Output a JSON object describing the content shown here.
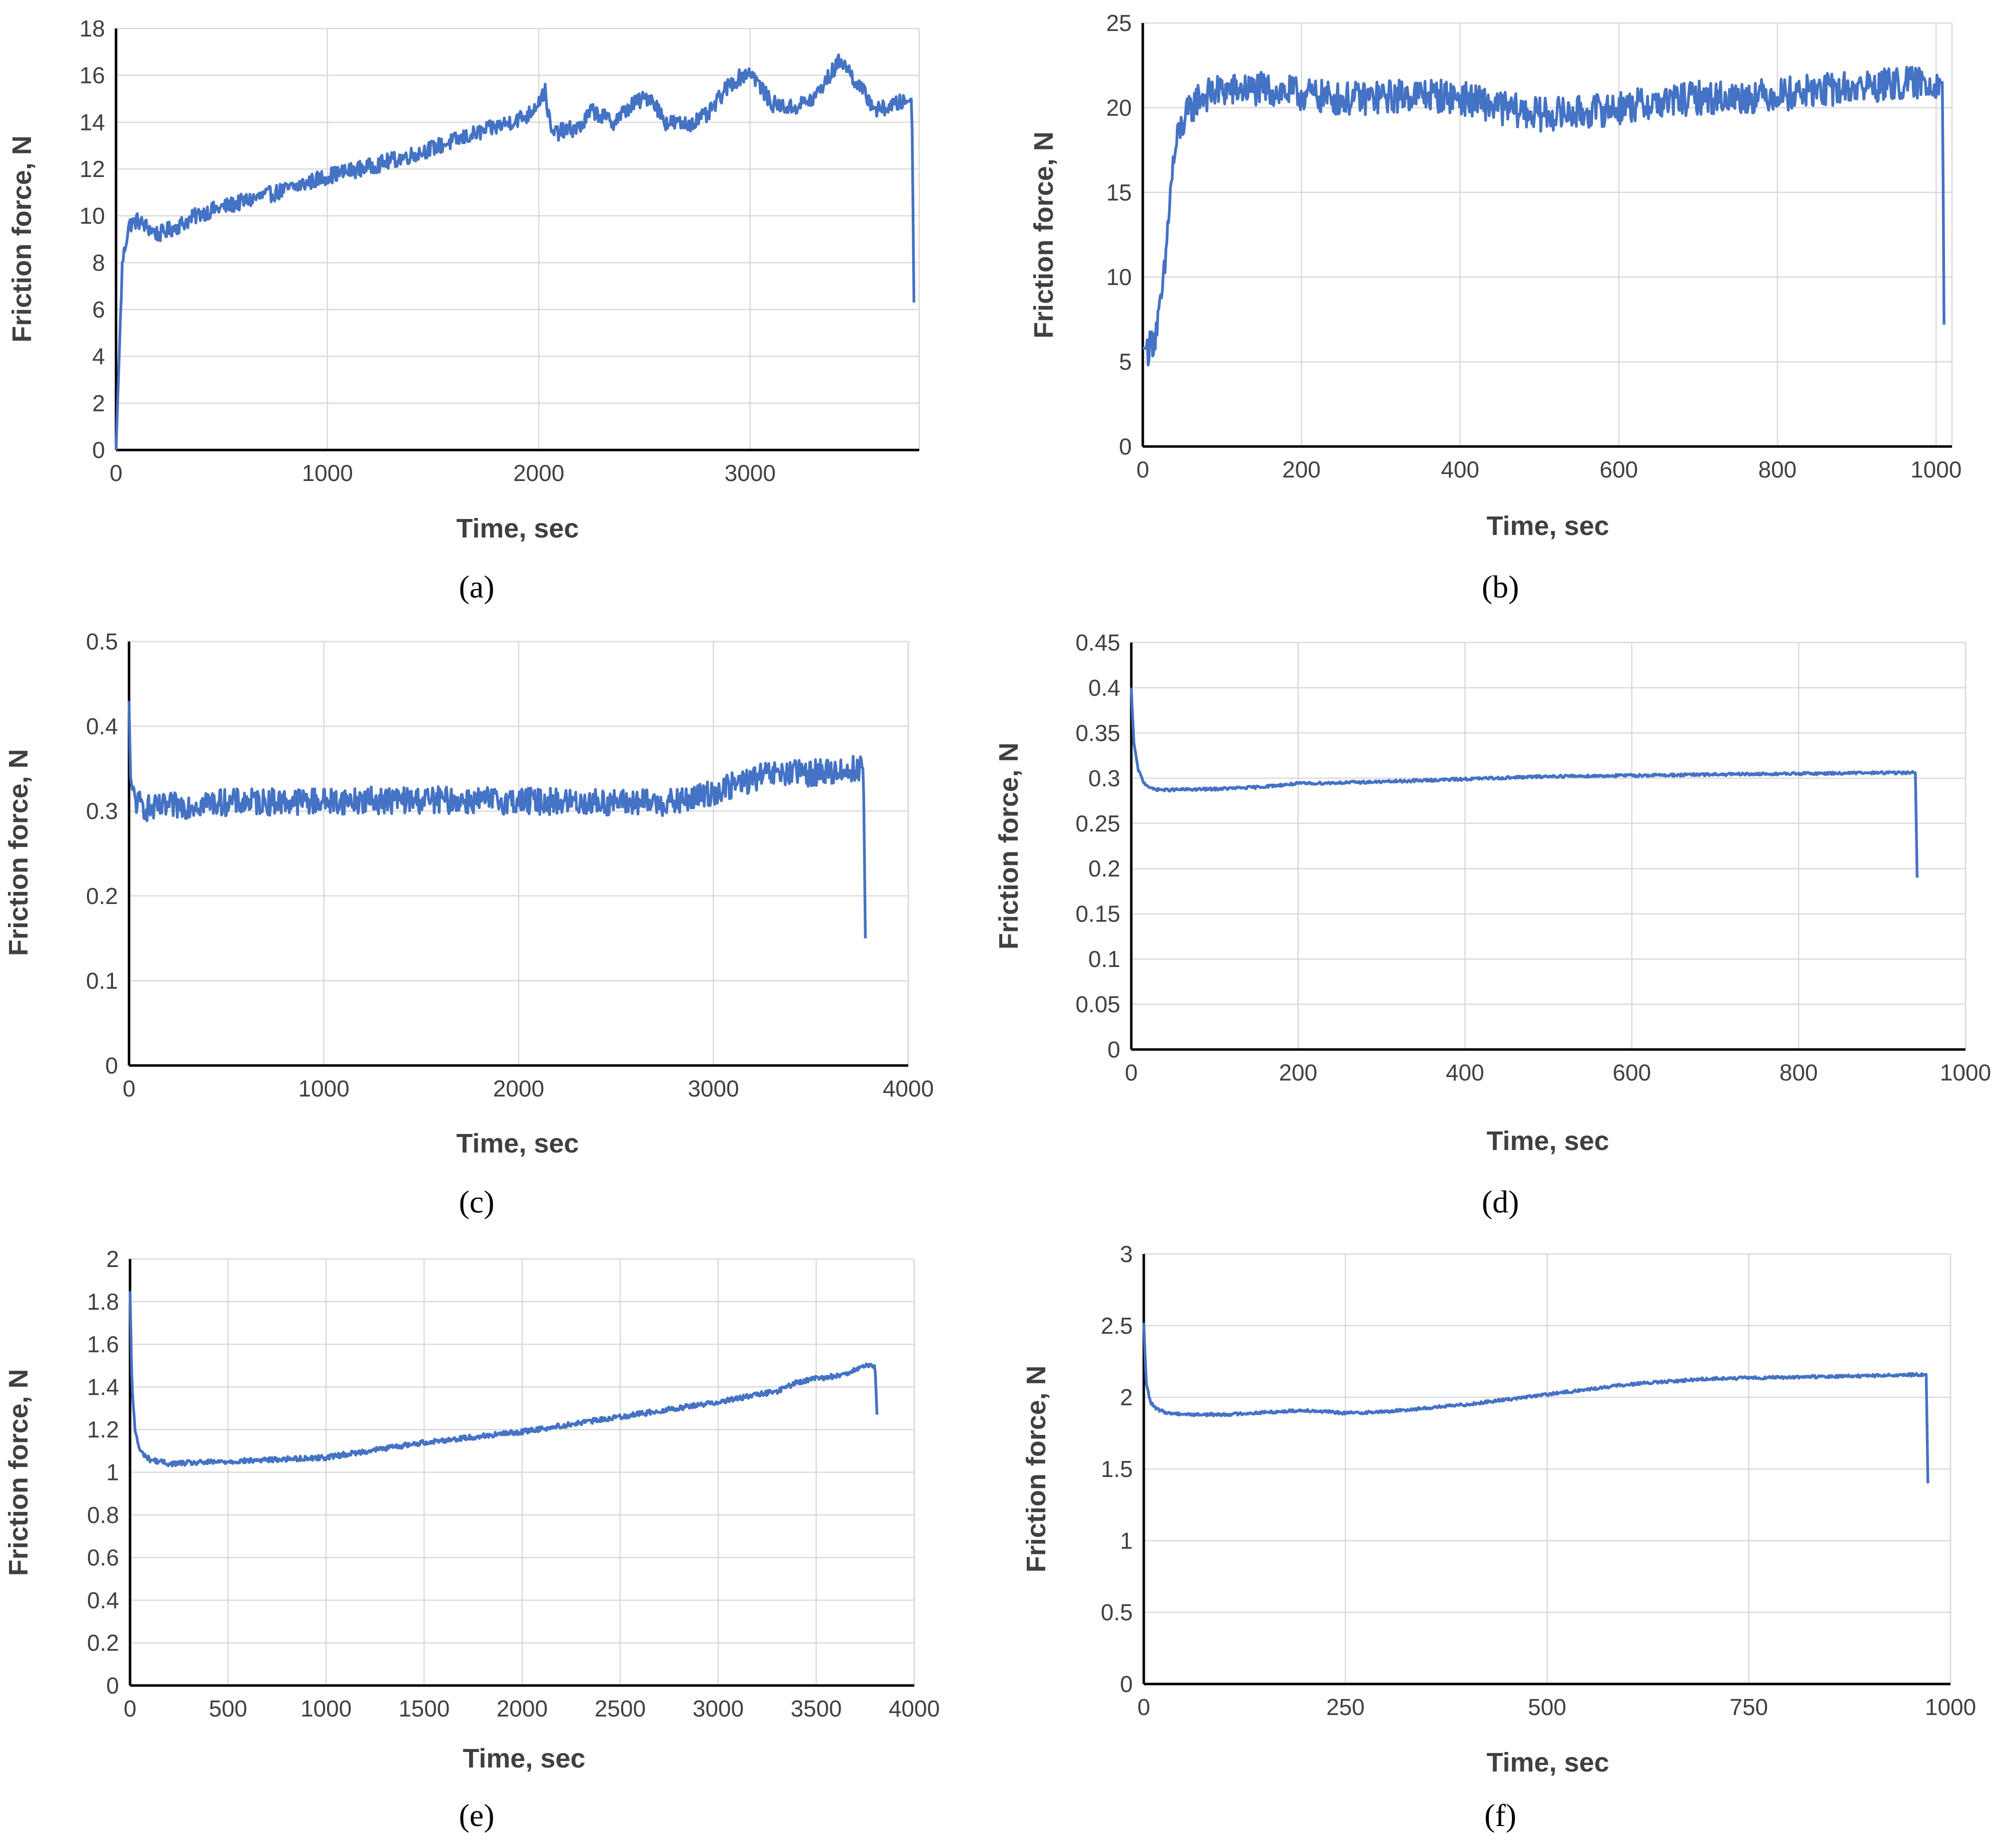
{
  "figure": {
    "captions": [
      "(a)",
      "(b)",
      "(c)",
      "(d)",
      "(e)",
      "(f)"
    ]
  },
  "colors": {
    "series": "#4472c4",
    "grid": "#d9d9d9",
    "axis": "#000000",
    "text": "#404040"
  },
  "chart_data": [
    {
      "id": "a",
      "type": "line",
      "caption_letter": "a",
      "title": "",
      "xlabel": "Time, sec",
      "ylabel": "Friction force, N",
      "xlim": [
        0,
        3800
      ],
      "ylim": [
        0,
        18
      ],
      "xticks": [
        0,
        1000,
        2000,
        3000
      ],
      "yticks": [
        0,
        2,
        4,
        6,
        8,
        10,
        12,
        14,
        16,
        18
      ],
      "grid": true,
      "legend": "none",
      "series": [
        {
          "name": "Friction force",
          "x": [
            0,
            15,
            30,
            60,
            100,
            200,
            300,
            400,
            600,
            800,
            1000,
            1200,
            1400,
            1600,
            1800,
            1950,
            2030,
            2060,
            2200,
            2250,
            2350,
            2450,
            2530,
            2600,
            2700,
            2800,
            2900,
            3000,
            3100,
            3200,
            3300,
            3430,
            3480,
            3550,
            3600,
            3700,
            3765,
            3775
          ],
          "y": [
            0,
            4,
            8,
            9.6,
            9.8,
            9.2,
            9.6,
            10.1,
            10.6,
            11.1,
            11.7,
            12.1,
            12.6,
            13.2,
            13.8,
            14.3,
            15.3,
            13.5,
            13.8,
            14.5,
            14.0,
            14.8,
            15.1,
            14.0,
            13.9,
            14.3,
            15.6,
            16.2,
            14.8,
            14.6,
            15.0,
            16.7,
            16.0,
            15.1,
            14.5,
            14.8,
            15.0,
            6.3
          ],
          "noise": 0.35
        }
      ]
    },
    {
      "id": "b",
      "type": "line",
      "caption_letter": "b",
      "title": "",
      "xlabel": "Time, sec",
      "ylabel": "Friction force, N",
      "xlim": [
        0,
        1020
      ],
      "ylim": [
        0,
        25
      ],
      "xticks": [
        0,
        200,
        400,
        600,
        800,
        1000
      ],
      "yticks": [
        0,
        5,
        10,
        15,
        20,
        25
      ],
      "grid": true,
      "legend": "none",
      "series": [
        {
          "name": "Friction force",
          "x": [
            0,
            8,
            15,
            22,
            28,
            33,
            38,
            45,
            55,
            70,
            100,
            150,
            200,
            250,
            300,
            350,
            400,
            450,
            500,
            550,
            600,
            650,
            700,
            750,
            800,
            850,
            900,
            950,
            1000,
            1008,
            1010
          ],
          "y": [
            5.8,
            5.8,
            6.5,
            8.0,
            10.5,
            14.0,
            16.5,
            18.5,
            19.5,
            20.6,
            21.0,
            21.1,
            20.8,
            20.5,
            20.6,
            20.8,
            20.6,
            20.0,
            19.6,
            19.7,
            20.0,
            20.3,
            20.6,
            20.6,
            20.8,
            21.0,
            21.2,
            21.4,
            21.5,
            21.5,
            7.2
          ],
          "noise": 1.0
        }
      ]
    },
    {
      "id": "c",
      "type": "line",
      "caption_letter": "c",
      "title": "",
      "xlabel": "Time, sec",
      "ylabel": "Friction force, N",
      "xlim": [
        0,
        4000
      ],
      "ylim": [
        0,
        0.5
      ],
      "xticks": [
        0,
        1000,
        2000,
        3000,
        4000
      ],
      "yticks": [
        0,
        0.1,
        0.2,
        0.3,
        0.4,
        0.5
      ],
      "grid": true,
      "legend": "none",
      "series": [
        {
          "name": "Friction force",
          "x": [
            0,
            8,
            20,
            40,
            80,
            120,
            200,
            400,
            1000,
            1500,
            2000,
            2500,
            2800,
            2900,
            3000,
            3100,
            3200,
            3300,
            3500,
            3700,
            3760,
            3770,
            3780
          ],
          "y": [
            0.43,
            0.34,
            0.32,
            0.31,
            0.305,
            0.302,
            0.305,
            0.31,
            0.312,
            0.313,
            0.312,
            0.31,
            0.31,
            0.315,
            0.322,
            0.33,
            0.338,
            0.343,
            0.345,
            0.348,
            0.352,
            0.35,
            0.15
          ],
          "noise": 0.016
        }
      ]
    },
    {
      "id": "d",
      "type": "line",
      "caption_letter": "d",
      "title": "",
      "xlabel": "Time, sec",
      "ylabel": "Friction force, N",
      "xlim": [
        0,
        1000
      ],
      "ylim": [
        0,
        0.45
      ],
      "xticks": [
        0,
        200,
        400,
        600,
        800,
        1000
      ],
      "yticks": [
        0,
        0.05,
        0.1,
        0.15,
        0.2,
        0.25,
        0.3,
        0.35,
        0.4,
        0.45
      ],
      "grid": true,
      "legend": "none",
      "series": [
        {
          "name": "Friction force",
          "x": [
            0,
            3,
            8,
            15,
            25,
            40,
            100,
            150,
            200,
            300,
            400,
            500,
            600,
            700,
            800,
            900,
            940,
            942
          ],
          "y": [
            0.4,
            0.34,
            0.31,
            0.295,
            0.288,
            0.287,
            0.288,
            0.29,
            0.294,
            0.296,
            0.299,
            0.302,
            0.303,
            0.304,
            0.305,
            0.306,
            0.306,
            0.19
          ],
          "noise": 0.0015
        }
      ]
    },
    {
      "id": "e",
      "type": "line",
      "caption_letter": "e",
      "title": "",
      "xlabel": "Time, sec",
      "ylabel": "Friction force, N",
      "xlim": [
        0,
        4000
      ],
      "ylim": [
        0,
        2
      ],
      "xticks": [
        0,
        500,
        1000,
        1500,
        2000,
        2500,
        3000,
        3500,
        4000
      ],
      "yticks": [
        0,
        0.2,
        0.4,
        0.6,
        0.8,
        1,
        1.2,
        1.4,
        1.6,
        1.8,
        2
      ],
      "grid": true,
      "legend": "none",
      "series": [
        {
          "name": "Friction force",
          "x": [
            0,
            10,
            25,
            50,
            100,
            200,
            500,
            1000,
            1500,
            2000,
            2500,
            3000,
            3300,
            3400,
            3500,
            3600,
            3700,
            3770,
            3800,
            3810
          ],
          "y": [
            1.85,
            1.4,
            1.2,
            1.1,
            1.06,
            1.04,
            1.05,
            1.07,
            1.14,
            1.19,
            1.26,
            1.33,
            1.38,
            1.42,
            1.44,
            1.45,
            1.48,
            1.5,
            1.5,
            1.27
          ],
          "noise": 0.012
        }
      ]
    },
    {
      "id": "f",
      "type": "line",
      "caption_letter": "f",
      "title": "",
      "xlabel": "Time, sec",
      "ylabel": "Friction force, N",
      "xlim": [
        0,
        1000
      ],
      "ylim": [
        0,
        3
      ],
      "xticks": [
        0,
        250,
        500,
        750,
        1000
      ],
      "yticks": [
        0,
        0.5,
        1,
        1.5,
        2,
        2.5,
        3
      ],
      "grid": true,
      "legend": "none",
      "series": [
        {
          "name": "Friction force",
          "x": [
            0,
            3,
            8,
            15,
            30,
            60,
            100,
            200,
            250,
            300,
            400,
            500,
            600,
            700,
            800,
            900,
            970,
            972
          ],
          "y": [
            2.52,
            2.1,
            1.97,
            1.92,
            1.89,
            1.88,
            1.88,
            1.91,
            1.89,
            1.9,
            1.95,
            2.02,
            2.09,
            2.13,
            2.14,
            2.15,
            2.16,
            1.4
          ],
          "noise": 0.01
        }
      ]
    }
  ]
}
